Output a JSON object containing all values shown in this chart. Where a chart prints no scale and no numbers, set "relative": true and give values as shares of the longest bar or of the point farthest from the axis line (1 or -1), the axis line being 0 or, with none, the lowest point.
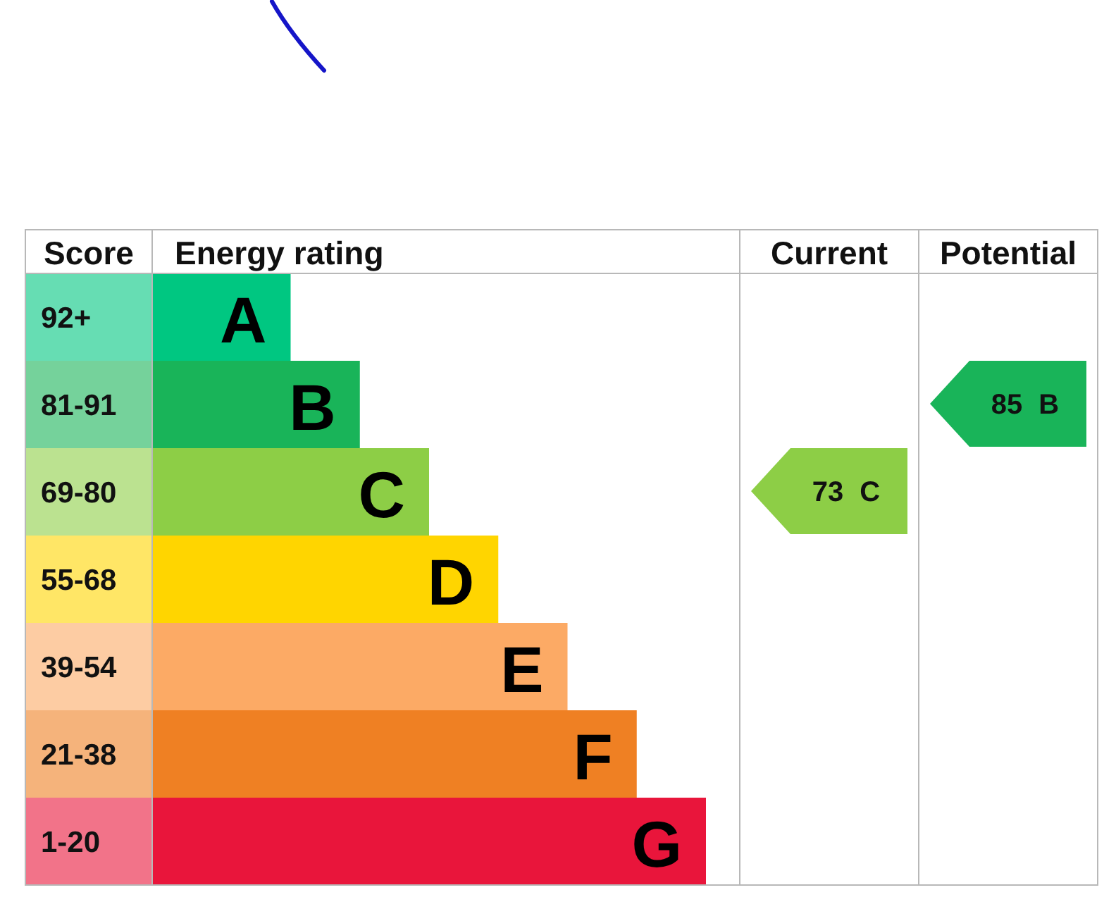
{
  "chart_data": {
    "type": "bar",
    "orientation": "horizontal",
    "relative": true,
    "xlabel": "Energy rating",
    "ylabel": "Score",
    "categories": [
      "92+",
      "81-91",
      "69-80",
      "55-68",
      "39-54",
      "21-38",
      "1-20"
    ],
    "values": [
      0.25,
      0.375,
      0.5,
      0.625,
      0.75,
      0.875,
      1
    ],
    "colors": [
      "#00c781",
      "#19b459",
      "#8dce46",
      "#ffd500",
      "#fcaa65",
      "#ef8023",
      "#e9153b"
    ],
    "annotations": [
      "Current",
      "Potential",
      "73 C",
      "85 B",
      {
        "text": "A",
        "x": 0.25,
        "y": "92+"
      },
      {
        "text": "B",
        "x": 0.375,
        "y": "81-91"
      },
      {
        "text": "C",
        "x": 0.5,
        "y": "69-80"
      },
      {
        "text": "D",
        "x": 0.625,
        "y": "55-68"
      },
      {
        "text": "E",
        "x": 0.75,
        "y": "39-54"
      },
      {
        "text": "F",
        "x": 0.875,
        "y": "21-38"
      },
      {
        "text": "G",
        "x": 1,
        "y": "1-20"
      }
    ]
  }
}
